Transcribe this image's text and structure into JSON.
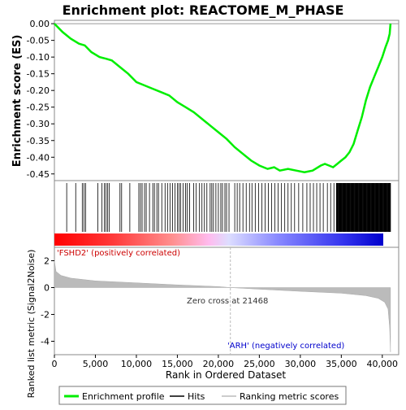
{
  "title": "Enrichment plot: REACTOME_M_PHASE",
  "chart_data": [
    {
      "type": "line",
      "panel": "enrichment-score",
      "ylabel": "Enrichment score (ES)",
      "ylim": [
        -0.47,
        0.01
      ],
      "yticks": [
        "0.00",
        "-0.05",
        "-0.10",
        "-0.15",
        "-0.20",
        "-0.25",
        "-0.30",
        "-0.35",
        "-0.40",
        "-0.45"
      ],
      "ytick_values": [
        0.0,
        -0.05,
        -0.1,
        -0.15,
        -0.2,
        -0.25,
        -0.3,
        -0.35,
        -0.4,
        -0.45
      ],
      "xlim": [
        0,
        42000
      ],
      "color": "#00ee00",
      "series": [
        {
          "name": "Enrichment profile",
          "x": [
            0,
            1000,
            2000,
            3000,
            3700,
            4500,
            5500,
            6300,
            7000,
            8000,
            9000,
            10000,
            11000,
            12000,
            13000,
            14000,
            15000,
            16000,
            17000,
            18000,
            19000,
            20000,
            21000,
            22000,
            23000,
            24000,
            25000,
            26000,
            26800,
            27500,
            28500,
            29500,
            30500,
            31500,
            32500,
            33000,
            33500,
            34000,
            34500,
            35000,
            35500,
            36000,
            36500,
            37000,
            37500,
            38000,
            38500,
            39000,
            39500,
            40000,
            40400,
            40700,
            40900,
            41000
          ],
          "y": [
            0.0,
            -0.025,
            -0.045,
            -0.06,
            -0.065,
            -0.085,
            -0.1,
            -0.105,
            -0.11,
            -0.13,
            -0.15,
            -0.175,
            -0.185,
            -0.195,
            -0.205,
            -0.215,
            -0.235,
            -0.25,
            -0.265,
            -0.285,
            -0.305,
            -0.325,
            -0.345,
            -0.37,
            -0.39,
            -0.41,
            -0.425,
            -0.435,
            -0.43,
            -0.44,
            -0.435,
            -0.44,
            -0.445,
            -0.44,
            -0.425,
            -0.42,
            -0.425,
            -0.43,
            -0.42,
            -0.41,
            -0.4,
            -0.385,
            -0.36,
            -0.32,
            -0.28,
            -0.23,
            -0.19,
            -0.16,
            -0.13,
            -0.1,
            -0.07,
            -0.05,
            -0.03,
            0.0
          ]
        }
      ]
    },
    {
      "type": "scatter",
      "panel": "hits",
      "legend_label": "Hits",
      "hits_sparse": [
        1500,
        2600,
        3400,
        3600,
        3800,
        5300,
        5800,
        6100,
        6300,
        6500,
        6700,
        8000,
        8200,
        9200,
        10300,
        10500,
        10700,
        11000,
        11200,
        11600,
        12000,
        12200,
        12500,
        12700,
        13100,
        13500,
        13800,
        14100,
        14400,
        14700,
        15000,
        15200,
        15400,
        15700,
        16000,
        16200,
        16500,
        17000,
        17300,
        17700,
        18000,
        18300,
        18600,
        19000,
        19200,
        19400,
        19700,
        20000,
        20300,
        20500,
        20800,
        21000,
        21300,
        22000,
        22300,
        22600,
        23000,
        23400,
        23800,
        24100,
        24500,
        24900,
        25300,
        25700,
        26100,
        26500,
        26900,
        27300,
        27700,
        28100,
        28500,
        28900,
        29300,
        29800,
        30300,
        30800,
        31200,
        31600,
        32000,
        32400,
        32800,
        33300,
        33700,
        34100
      ],
      "hits_dense_range": [
        34400,
        41000
      ]
    },
    {
      "type": "area",
      "panel": "ranked-metric",
      "ylabel": "Ranked list metric (Signal2Noise)",
      "xlabel": "Rank in Ordered Dataset",
      "ylim": [
        -5,
        3
      ],
      "yticks": [
        "2",
        "0",
        "-2",
        "-4"
      ],
      "ytick_values": [
        2,
        0,
        -2,
        -4
      ],
      "xlim": [
        0,
        42000
      ],
      "xticks": [
        "0",
        "5,000",
        "10,000",
        "15,000",
        "20,000",
        "25,000",
        "30,000",
        "35,000",
        "40,000"
      ],
      "xtick_values": [
        0,
        5000,
        10000,
        15000,
        20000,
        25000,
        30000,
        35000,
        40000
      ],
      "x": [
        0,
        200,
        800,
        2000,
        5000,
        10000,
        15000,
        20000,
        21468,
        25000,
        30000,
        35000,
        38000,
        39500,
        40300,
        40700,
        40900,
        41000
      ],
      "y": [
        2.0,
        1.2,
        0.9,
        0.7,
        0.5,
        0.35,
        0.2,
        0.07,
        0.0,
        -0.12,
        -0.28,
        -0.42,
        -0.6,
        -0.8,
        -1.1,
        -1.6,
        -3.0,
        -4.8
      ],
      "annotations": {
        "zero_cross": "Zero cross at 21468",
        "zero_cross_x": 21468,
        "positive": "'FSHD2' (positively correlated)",
        "negative": "'ARH' (negatively correlated)"
      }
    }
  ],
  "legend": {
    "items": [
      {
        "label": "Enrichment profile",
        "color": "#00ee00"
      },
      {
        "label": "Hits",
        "color": "#000000"
      },
      {
        "label": "Ranking metric scores",
        "color": "#bbbbbb"
      }
    ]
  }
}
